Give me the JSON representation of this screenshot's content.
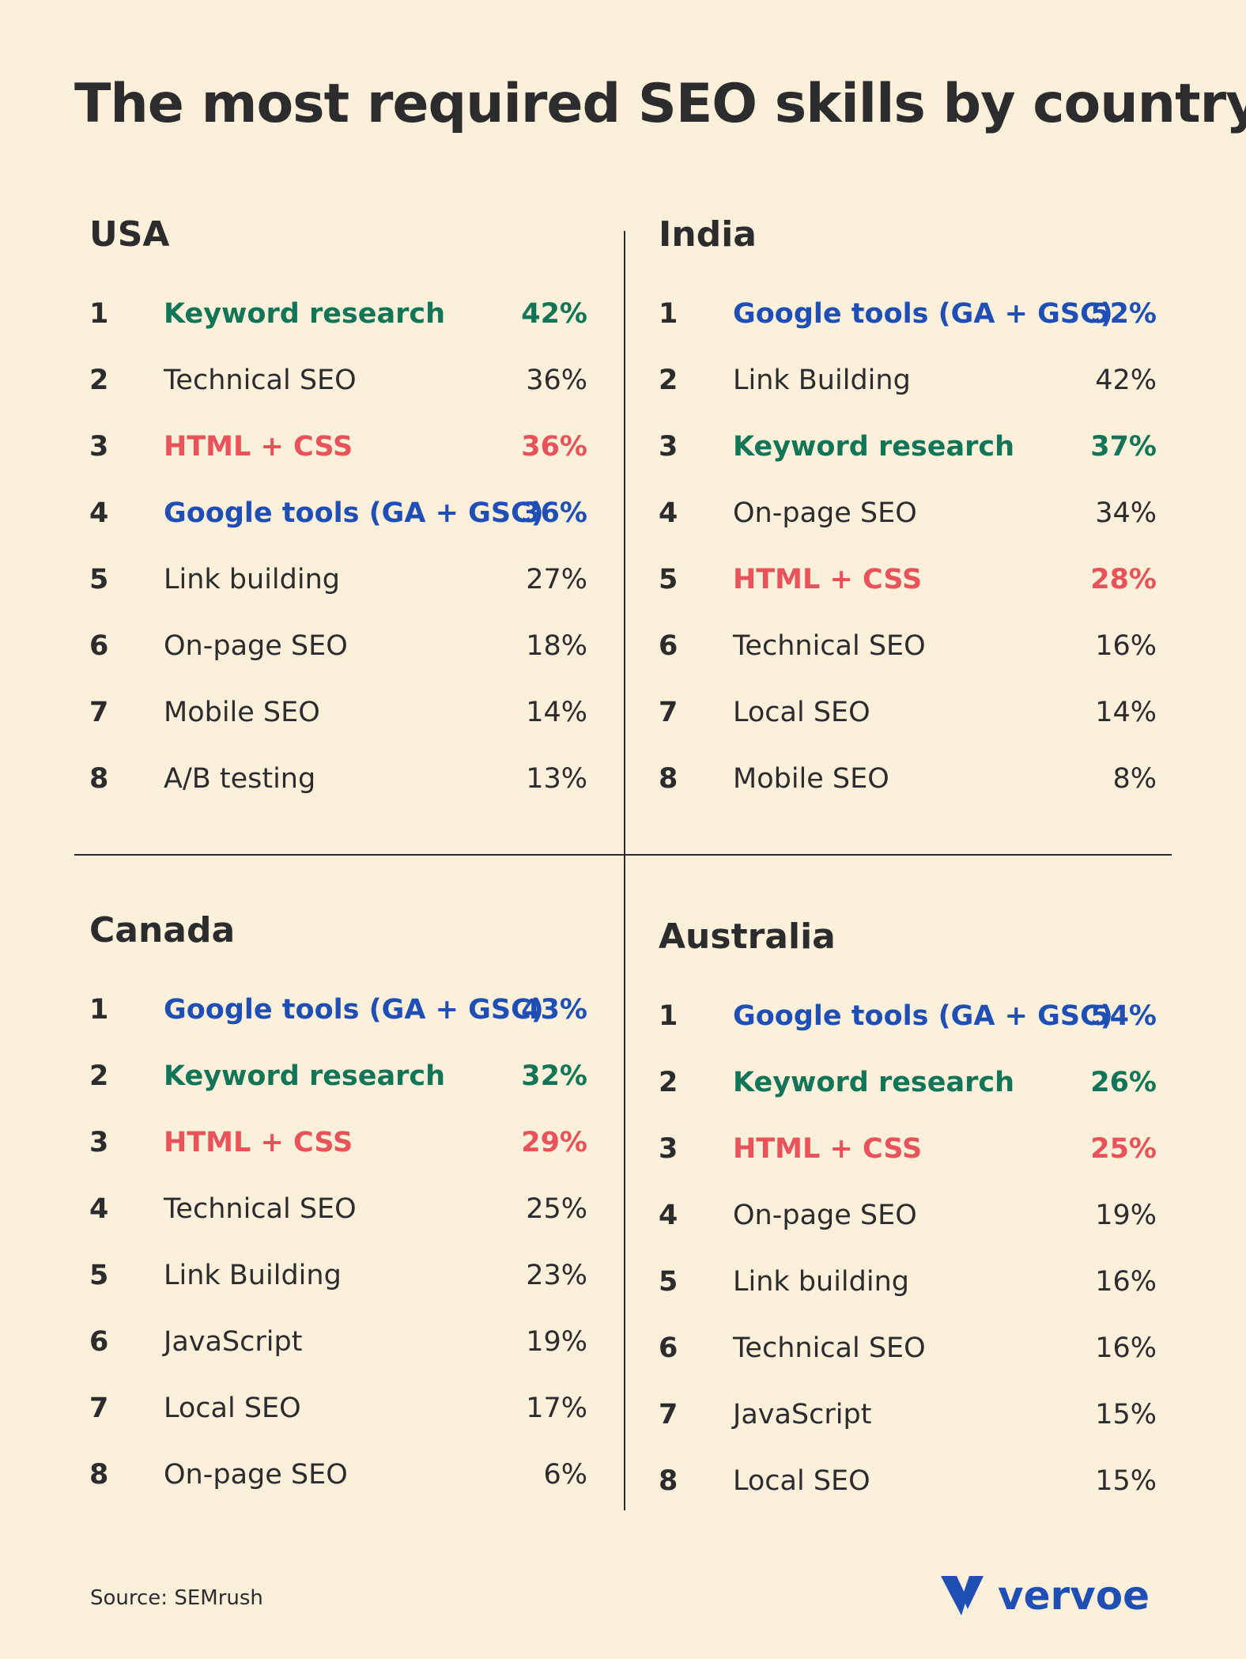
{
  "title": "The most required SEO skills by country",
  "source": "Source: SEMrush",
  "brand": "vervoe",
  "colors": {
    "background": "#fdf0da",
    "text": "#2c2c2e",
    "green": "#127558",
    "red": "#e8525a",
    "blue": "#1f4fb5"
  },
  "chart_data": [
    {
      "type": "table",
      "title": "USA",
      "columns": [
        "rank",
        "skill",
        "percent"
      ],
      "rows": [
        {
          "rank": "1",
          "skill": "Keyword research",
          "pct": "42%",
          "value": 42,
          "color": "#127558"
        },
        {
          "rank": "2",
          "skill": "Technical SEO",
          "pct": "36%",
          "value": 36,
          "color": ""
        },
        {
          "rank": "3",
          "skill": "HTML + CSS",
          "pct": "36%",
          "value": 36,
          "color": "#e8525a"
        },
        {
          "rank": "4",
          "skill": "Google tools (GA + GSC)",
          "pct": "36%",
          "value": 36,
          "color": "#1f4fb5"
        },
        {
          "rank": "5",
          "skill": "Link building",
          "pct": "27%",
          "value": 27,
          "color": ""
        },
        {
          "rank": "6",
          "skill": "On-page SEO",
          "pct": "18%",
          "value": 18,
          "color": ""
        },
        {
          "rank": "7",
          "skill": "Mobile SEO",
          "pct": "14%",
          "value": 14,
          "color": ""
        },
        {
          "rank": "8",
          "skill": "A/B testing",
          "pct": "13%",
          "value": 13,
          "color": ""
        }
      ]
    },
    {
      "type": "table",
      "title": "India",
      "columns": [
        "rank",
        "skill",
        "percent"
      ],
      "rows": [
        {
          "rank": "1",
          "skill": "Google tools (GA + GSC)",
          "pct": "52%",
          "value": 52,
          "color": "#1f4fb5"
        },
        {
          "rank": "2",
          "skill": "Link Building",
          "pct": "42%",
          "value": 42,
          "color": ""
        },
        {
          "rank": "3",
          "skill": "Keyword research",
          "pct": "37%",
          "value": 37,
          "color": "#127558"
        },
        {
          "rank": "4",
          "skill": "On-page SEO",
          "pct": "34%",
          "value": 34,
          "color": ""
        },
        {
          "rank": "5",
          "skill": "HTML + CSS",
          "pct": "28%",
          "value": 28,
          "color": "#e8525a"
        },
        {
          "rank": "6",
          "skill": "Technical SEO",
          "pct": "16%",
          "value": 16,
          "color": ""
        },
        {
          "rank": "7",
          "skill": "Local SEO",
          "pct": "14%",
          "value": 14,
          "color": ""
        },
        {
          "rank": "8",
          "skill": "Mobile SEO",
          "pct": "8%",
          "value": 8,
          "color": ""
        }
      ]
    },
    {
      "type": "table",
      "title": "Canada",
      "columns": [
        "rank",
        "skill",
        "percent"
      ],
      "rows": [
        {
          "rank": "1",
          "skill": "Google tools (GA + GSC)",
          "pct": "43%",
          "value": 43,
          "color": "#1f4fb5"
        },
        {
          "rank": "2",
          "skill": "Keyword research",
          "pct": "32%",
          "value": 32,
          "color": "#127558"
        },
        {
          "rank": "3",
          "skill": "HTML + CSS",
          "pct": "29%",
          "value": 29,
          "color": "#e8525a"
        },
        {
          "rank": "4",
          "skill": "Technical SEO",
          "pct": "25%",
          "value": 25,
          "color": ""
        },
        {
          "rank": "5",
          "skill": "Link Building",
          "pct": "23%",
          "value": 23,
          "color": ""
        },
        {
          "rank": "6",
          "skill": "JavaScript",
          "pct": "19%",
          "value": 19,
          "color": ""
        },
        {
          "rank": "7",
          "skill": "Local SEO",
          "pct": "17%",
          "value": 17,
          "color": ""
        },
        {
          "rank": "8",
          "skill": "On-page SEO",
          "pct": "6%",
          "value": 6,
          "color": ""
        }
      ]
    },
    {
      "type": "table",
      "title": "Australia",
      "columns": [
        "rank",
        "skill",
        "percent"
      ],
      "rows": [
        {
          "rank": "1",
          "skill": "Google tools (GA + GSC)",
          "pct": "54%",
          "value": 54,
          "color": "#1f4fb5"
        },
        {
          "rank": "2",
          "skill": "Keyword research",
          "pct": "26%",
          "value": 26,
          "color": "#127558"
        },
        {
          "rank": "3",
          "skill": "HTML + CSS",
          "pct": "25%",
          "value": 25,
          "color": "#e8525a"
        },
        {
          "rank": "4",
          "skill": "On-page SEO",
          "pct": "19%",
          "value": 19,
          "color": ""
        },
        {
          "rank": "5",
          "skill": "Link building",
          "pct": "16%",
          "value": 16,
          "color": ""
        },
        {
          "rank": "6",
          "skill": "Technical SEO",
          "pct": "16%",
          "value": 16,
          "color": ""
        },
        {
          "rank": "7",
          "skill": "JavaScript",
          "pct": "15%",
          "value": 15,
          "color": ""
        },
        {
          "rank": "8",
          "skill": "Local SEO",
          "pct": "15%",
          "value": 15,
          "color": ""
        }
      ]
    }
  ]
}
